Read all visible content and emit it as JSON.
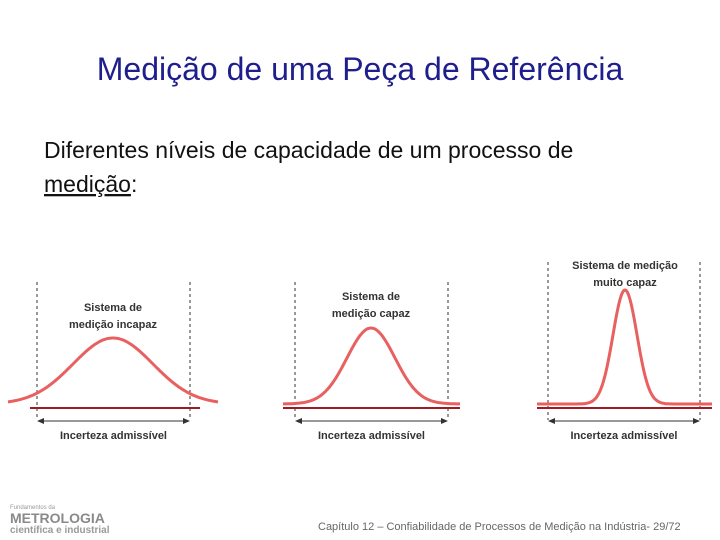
{
  "title": "Medição de uma Peça de Referência",
  "body": {
    "text": "Diferentes níveis de capacidade de um processo de",
    "underlined": "medição",
    "after": ":"
  },
  "panels": [
    {
      "label": [
        "Sistema de",
        "medição incapaz"
      ],
      "range": "Incerteza admissível"
    },
    {
      "label": [
        "Sistema de",
        "medição capaz"
      ],
      "range": "Incerteza admissível"
    },
    {
      "label": [
        "Sistema de medição",
        "muito capaz"
      ],
      "range": "Incerteza admissível"
    }
  ],
  "logo": {
    "small": "Fundamentos da",
    "name": "METROLOGIA",
    "sub": "científica e industrial"
  },
  "footer": "Capítulo 12 – Confiabilidade de Processos de Medição na Indústria- 29/72"
}
